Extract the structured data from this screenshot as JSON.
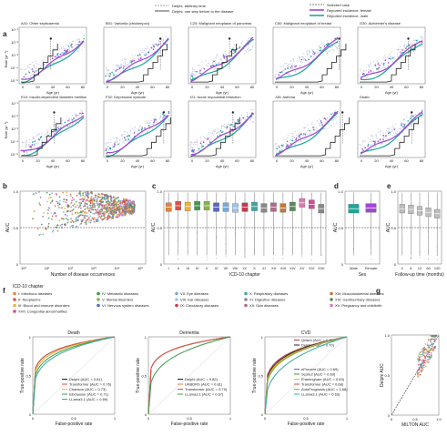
{
  "panel_labels": [
    "a",
    "b",
    "c",
    "d",
    "e",
    "f",
    "g"
  ],
  "legend_top": {
    "left": [
      "Delphi, arbitrary time",
      "Delphi, one step before to the disease"
    ],
    "right": [
      "Selected case",
      "Reported incidence, female",
      "Reported incidence, male"
    ]
  },
  "colors": {
    "female": "#a346d4",
    "male": "#1aa79a",
    "delphi": "#222222",
    "scatter": "#b5b8dc",
    "dashed": "#555555"
  },
  "panel_a_titles": [
    "A41: Other septicaemia",
    "B01: Varicella (chickenpox)",
    "C25: Malignant neoplasm of pancreas",
    "C50: Malignant neoplasm of breast",
    "G30: Alzheimer's disease",
    "E10: Insulin-dependent diabetes mellitus",
    "F32: Depressive episode",
    "I21: Acute myocardial infarction",
    "J45: Asthma",
    "Death"
  ],
  "panel_a_xticks": [
    "0",
    "20",
    "40",
    "60",
    "80"
  ],
  "panel_a_yticks": [
    "10⁻¹",
    "10⁻²",
    "10⁻³",
    "10⁻⁴",
    "10⁻⁵"
  ],
  "panel_a_xlabel": "Age (yr)",
  "panel_a_ylabel": "Rate (yr⁻¹)",
  "chart_data": [
    {
      "panel": "b",
      "type": "scatter",
      "xlabel": "Number of disease occurrences",
      "ylabel": "AUC",
      "xticks": [
        "10⁰",
        "10¹",
        "10²",
        "10³",
        "10⁴",
        "10⁵"
      ],
      "yticks": [
        "0",
        "0.5",
        "1.0"
      ],
      "ylim": [
        0,
        1
      ],
      "reference_line": 0.5
    },
    {
      "panel": "c",
      "type": "box",
      "xlabel": "ICD-10 chapter",
      "ylabel": "AUC",
      "categories": [
        "I",
        "II",
        "III",
        "IV",
        "V",
        "VI",
        "VII",
        "VIII",
        "IX",
        "X",
        "XI",
        "XII",
        "XIII",
        "XIV",
        "XV",
        "XVI",
        "XVII"
      ],
      "box_colors": [
        "#e8823a",
        "#d9524a",
        "#eeb62a",
        "#3a9a4a",
        "#86b44a",
        "#5a67c4",
        "#7aa8d8",
        "#a0c4e6",
        "#c33a4a",
        "#3aa8a0",
        "#888888",
        "#b06a8a",
        "#c07a3a",
        "#5a8a5a",
        "#d87ab4",
        "#d04a9a",
        "#888888"
      ],
      "medians": [
        0.78,
        0.8,
        0.79,
        0.8,
        0.8,
        0.78,
        0.78,
        0.77,
        0.78,
        0.79,
        0.77,
        0.78,
        0.77,
        0.79,
        0.84,
        0.82,
        0.76
      ],
      "ylim": [
        0,
        1
      ],
      "reference_line": 0.5
    },
    {
      "panel": "d",
      "type": "box",
      "xlabel": "Sex",
      "ylabel": "AUC",
      "categories": [
        "Male",
        "Female"
      ],
      "medians": [
        0.76,
        0.77
      ],
      "ylim": [
        0,
        1
      ]
    },
    {
      "panel": "e",
      "type": "box",
      "xlabel": "Follow-up time (months)",
      "ylabel": "AUC",
      "categories": [
        "0",
        "6",
        "12",
        "60",
        "120"
      ],
      "medians": [
        0.76,
        0.75,
        0.73,
        0.71,
        0.69
      ],
      "ylim": [
        0,
        1
      ]
    },
    {
      "panel": "f",
      "type": "line",
      "title": "Death",
      "xlabel": "False-positive rate",
      "ylabel": "True-positive rate",
      "series": [
        {
          "name": "Delphi (AUC = 0.81)"
        },
        {
          "name": "Transformer (AUC = 0.76)"
        },
        {
          "name": "Charlson (AUC = 0.73)"
        },
        {
          "name": "Elixhauser (AUC = 0.71)"
        },
        {
          "name": "LLama3.1 (AUC = 0.69)"
        }
      ]
    },
    {
      "panel": "f",
      "type": "line",
      "title": "Dementia",
      "xlabel": "False-positive rate",
      "ylabel": "True-positive rate",
      "series": [
        {
          "name": "Delphi (AUC = 0.82)"
        },
        {
          "name": "UKBDRS (AUC = 0.81)"
        },
        {
          "name": "Transformer (AUC = 0.79)"
        },
        {
          "name": "LLama3.1 (AUC = 0.67)"
        }
      ]
    },
    {
      "panel": "f",
      "type": "line",
      "title": "CVD",
      "xlabel": "False-positive rate",
      "ylabel": "True-positive rate",
      "series": [
        {
          "name": "Qrisk3 (AUC = 0.71)"
        },
        {
          "name": "Delphi (AUC = 0.70)"
        },
        {
          "name": "ePrevent (AUC = 0.69)"
        },
        {
          "name": "Score2 (AUC = 0.69)"
        },
        {
          "name": "Framingham (AUC = 0.69)"
        },
        {
          "name": "Transformer (AUC = 0.68)"
        },
        {
          "name": "AutoPrognosis (AUC = 0.68)"
        },
        {
          "name": "LLama3.1 (AUC = 0.63)"
        }
      ]
    },
    {
      "panel": "g",
      "type": "scatter",
      "xlabel": "MILTON AUC",
      "ylabel": "Delphi AUC",
      "xticks": [
        "0",
        "0.5",
        "1.0"
      ],
      "yticks": [
        "0",
        "0.5",
        "1.0"
      ],
      "xlim": [
        0,
        1
      ],
      "ylim": [
        0,
        1
      ]
    }
  ],
  "icd_legend": {
    "title": "ICD-10 chapter",
    "items": [
      {
        "label": "I: Infectious diseases",
        "color": "#e8823a"
      },
      {
        "label": "IV: Metabolic diseases",
        "color": "#3a9a4a"
      },
      {
        "label": "VII: Eye diseases",
        "color": "#7aa8d8"
      },
      {
        "label": "X: Respiratory diseases",
        "color": "#3aa8a0"
      },
      {
        "label": "XIII: Musculoskeletal diseases",
        "color": "#c07a3a"
      },
      {
        "label": "II: Neoplasms",
        "color": "#d9524a"
      },
      {
        "label": "V: Mental disorders",
        "color": "#86b44a"
      },
      {
        "label": "VIII: Ear diseases",
        "color": "#a0c4e6"
      },
      {
        "label": "XI: Digestive diseases",
        "color": "#888888"
      },
      {
        "label": "XIV: Genitourinary diseases",
        "color": "#5a8a5a"
      },
      {
        "label": "III: Blood and immune disorders",
        "color": "#eeb62a"
      },
      {
        "label": "VI: Nervous system diseases",
        "color": "#5a67c4"
      },
      {
        "label": "IX: Circulatory diseases",
        "color": "#c33a4a"
      },
      {
        "label": "XII: Skin diseases",
        "color": "#b06a8a"
      },
      {
        "label": "XV: Pregnancy and childbirth",
        "color": "#d87ab4"
      },
      {
        "label": "XVII: Congenital abnormalities",
        "color": "#d04a9a"
      }
    ]
  },
  "roc_xticks": [
    "0",
    "0.5",
    "1"
  ],
  "roc_yticks": [
    "0",
    "0.5",
    "1"
  ],
  "common_xticks_01": [
    "0",
    "0.5",
    "1"
  ],
  "axis_auc_ticks": [
    "0",
    "0.5",
    "1.0"
  ]
}
